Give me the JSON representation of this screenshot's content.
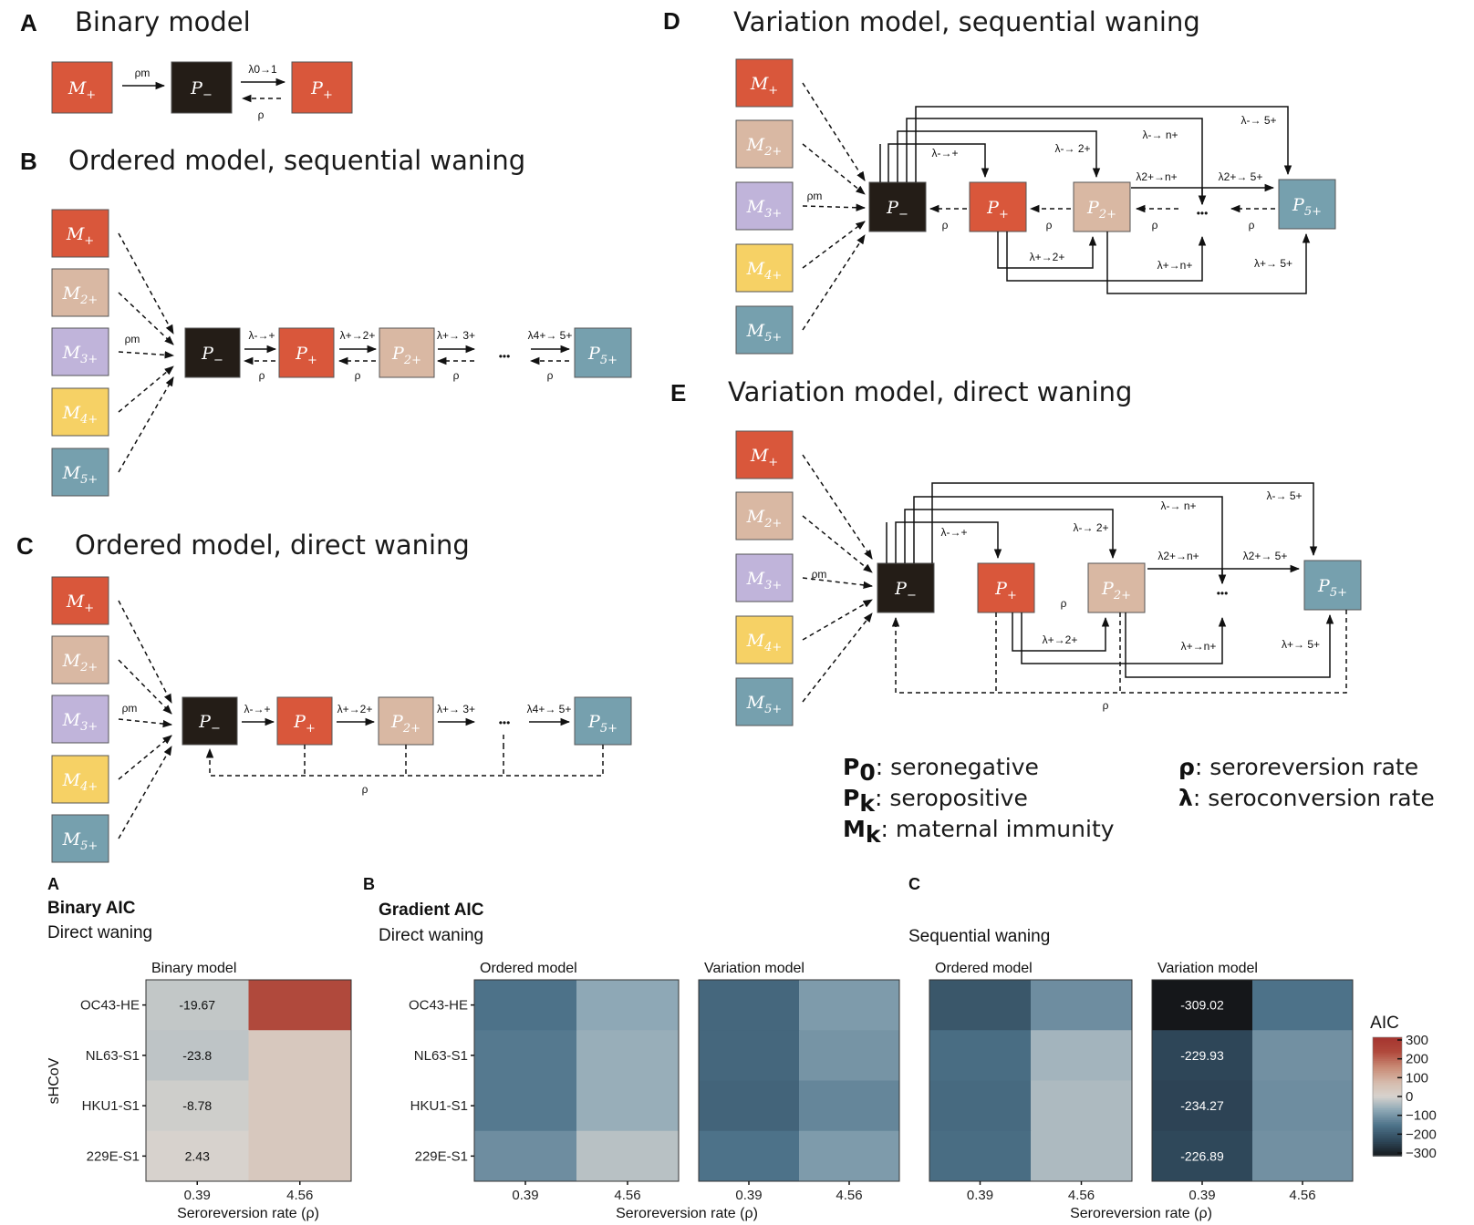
{
  "diagram": {
    "colors": {
      "M+": "#d9573b",
      "M2+": "#d9b8a3",
      "M3+": "#c0b4da",
      "M4+": "#f6d165",
      "M5+": "#76a0ae",
      "P-": "#241d17",
      "P+": "#d9573b",
      "P2+": "#d9b8a3",
      "P5+": "#76a0ae"
    },
    "labels": {
      "M": "M",
      "P": "P",
      "sub_minus": "−",
      "sub_plus": "+",
      "sub_2": "2+",
      "sub_3": "3+",
      "sub_4": "4+",
      "sub_5": "5+",
      "ellipsis": "•••"
    },
    "edges": {
      "rho": "ρ",
      "rho_m": "ρm",
      "lambda_01": "λ0→1",
      "lambda_minus_plus": "λ-→+",
      "lambda_plus_2": "λ+→2+",
      "lambda_plus_3": "λ+→ 3+",
      "lambda_4_5": "λ4+→ 5+",
      "lambda_minus_2": "λ-→ 2+",
      "lambda_minus_n": "λ-→ n+",
      "lambda_minus_5": "λ-→ 5+",
      "lambda_2_n": "λ2+→n+",
      "lambda_2_5": "λ2+→ 5+",
      "lambda_plus_n": "λ+→n+",
      "lambda_plus_5": "λ+→ 5+"
    },
    "panels": [
      {
        "letter": "A",
        "title": "Binary model"
      },
      {
        "letter": "B",
        "title": "Ordered model, sequential waning"
      },
      {
        "letter": "C",
        "title": "Ordered model, direct waning"
      },
      {
        "letter": "D",
        "title": "Variation model, sequential waning"
      },
      {
        "letter": "E",
        "title": "Variation model, direct waning"
      }
    ],
    "legend": [
      {
        "sym": "P",
        "sub": "0",
        "text": ": seronegative"
      },
      {
        "sym": "P",
        "sub": "k",
        "text": ": seropositive"
      },
      {
        "sym": "M",
        "sub": "k",
        "text": ": maternal immunity"
      },
      {
        "sym": "ρ",
        "sub": "",
        "text": ": seroreversion rate"
      },
      {
        "sym": "λ",
        "sub": "",
        "text": ": seroconversion rate"
      }
    ]
  },
  "chart_data": {
    "type": "heatmap",
    "rows": [
      "OC43-HE",
      "NL63-S1",
      "HKU1-S1",
      "229E-S1"
    ],
    "x_categories": [
      "0.39",
      "4.56"
    ],
    "ylabel": "sHCoV",
    "xlabel": "Seroreversion rate (ρ)",
    "color_scale": {
      "title": "AIC",
      "min": -300,
      "max": 300,
      "ticks": [
        "300",
        "200",
        "100",
        "0",
        "−100",
        "−200",
        "−300"
      ],
      "stops": [
        [
          -320,
          "#111111"
        ],
        [
          -230,
          "#2e4658"
        ],
        [
          -150,
          "#4d7289"
        ],
        [
          -70,
          "#8ea8b6"
        ],
        [
          0,
          "#d7d3ce"
        ],
        [
          70,
          "#d6bcad"
        ],
        [
          150,
          "#c98a75"
        ],
        [
          230,
          "#b0493c"
        ],
        [
          300,
          "#a63530"
        ]
      ]
    },
    "groups": [
      {
        "letter": "A",
        "title": "Binary AIC",
        "subtitle": "Direct waning",
        "facets": [
          {
            "strip": "Binary model",
            "values": [
              [
                -19.67,
                230
              ],
              [
                -23.8,
                35
              ],
              [
                -8.78,
                35
              ],
              [
                2.43,
                35
              ]
            ],
            "labels": [
              [
                "-19.67",
                ""
              ],
              [
                "-23.8",
                ""
              ],
              [
                "-8.78",
                ""
              ],
              [
                "2.43",
                ""
              ]
            ]
          }
        ]
      },
      {
        "letter": "B",
        "title": "Gradient AIC",
        "subtitle": "Direct waning",
        "facets": [
          {
            "strip": "Ordered model",
            "values": [
              [
                -150,
                -70
              ],
              [
                -140,
                -60
              ],
              [
                -140,
                -60
              ],
              [
                -110,
                -30
              ]
            ]
          },
          {
            "strip": "Variation model",
            "values": [
              [
                -170,
                -90
              ],
              [
                -170,
                -100
              ],
              [
                -175,
                -120
              ],
              [
                -150,
                -90
              ]
            ]
          }
        ]
      },
      {
        "letter": "C",
        "title": "",
        "subtitle": "Sequential waning",
        "facets": [
          {
            "strip": "Ordered model",
            "values": [
              [
                -200,
                -110
              ],
              [
                -160,
                -50
              ],
              [
                -165,
                -40
              ],
              [
                -160,
                -40
              ]
            ]
          },
          {
            "strip": "Variation model",
            "values": [
              [
                -309.02,
                -150
              ],
              [
                -229.93,
                -105
              ],
              [
                -234.27,
                -110
              ],
              [
                -226.89,
                -105
              ]
            ],
            "labels": [
              [
                "-309.02",
                ""
              ],
              [
                "-229.93",
                ""
              ],
              [
                "-234.27",
                ""
              ],
              [
                "-226.89",
                ""
              ]
            ]
          }
        ]
      }
    ]
  }
}
